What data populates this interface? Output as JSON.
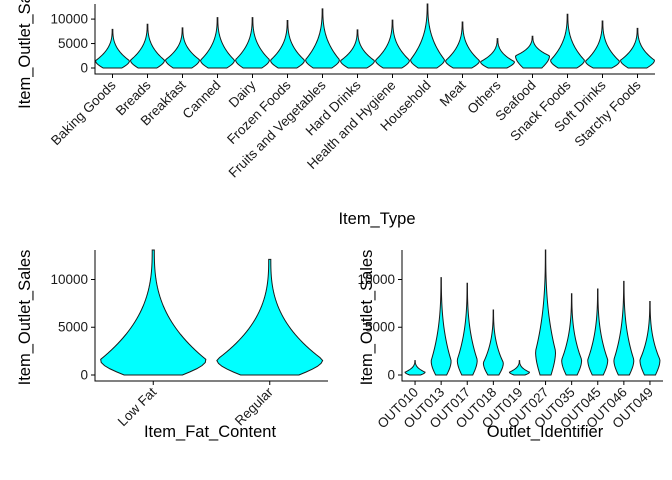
{
  "chart_data": [
    {
      "type": "violin",
      "xlabel": "Item_Type",
      "ylabel": "Item_Outlet_Sales",
      "ylim": [
        0,
        13087
      ],
      "yticks": [
        0,
        5000,
        10000
      ],
      "yticklabels": [
        "0",
        "5000",
        "10000"
      ],
      "fill_color": "#00ffff",
      "categories": [
        "Baking Goods",
        "Breads",
        "Breakfast",
        "Canned",
        "Dairy",
        "Frozen Foods",
        "Fruits and Vegetables",
        "Hard Drinks",
        "Health and Hygiene",
        "Household",
        "Meat",
        "Others",
        "Seafood",
        "Snack Foods",
        "Soft Drinks",
        "Starchy Foods"
      ],
      "max_values": [
        7900,
        8950,
        8200,
        10300,
        10300,
        9700,
        12100,
        7800,
        9800,
        13087,
        9400,
        6000,
        6500,
        11000,
        9600,
        8100
      ],
      "bulge_values": [
        1500,
        1600,
        1700,
        1600,
        1700,
        1600,
        1700,
        1500,
        1600,
        1700,
        1500,
        1300,
        2500,
        1600,
        1400,
        1600
      ]
    },
    {
      "type": "violin",
      "xlabel": "Item_Fat_Content",
      "ylabel": "Item_Outlet_Sales",
      "ylim": [
        0,
        13087
      ],
      "yticks": [
        0,
        5000,
        10000
      ],
      "yticklabels": [
        "0",
        "5000",
        "10000"
      ],
      "fill_color": "#00ffff",
      "categories": [
        "Low Fat",
        "Regular"
      ],
      "max_values": [
        13087,
        12100
      ],
      "bulge_values": [
        1600,
        1600
      ]
    },
    {
      "type": "violin",
      "xlabel": "Outlet_Identifier",
      "ylabel": "Item_Outlet_Sales",
      "ylim": [
        0,
        13087
      ],
      "yticks": [
        0,
        5000,
        10000
      ],
      "yticklabels": [
        "0",
        "5000",
        "10000"
      ],
      "fill_color": "#00ffff",
      "categories": [
        "OUT010",
        "OUT013",
        "OUT017",
        "OUT018",
        "OUT019",
        "OUT027",
        "OUT035",
        "OUT045",
        "OUT046",
        "OUT049"
      ],
      "max_values": [
        1500,
        10200,
        9600,
        6800,
        1500,
        13087,
        8500,
        9000,
        9800,
        7700
      ],
      "bulge_values": [
        300,
        1500,
        1600,
        1300,
        300,
        2500,
        1600,
        1600,
        1600,
        1600
      ]
    }
  ]
}
